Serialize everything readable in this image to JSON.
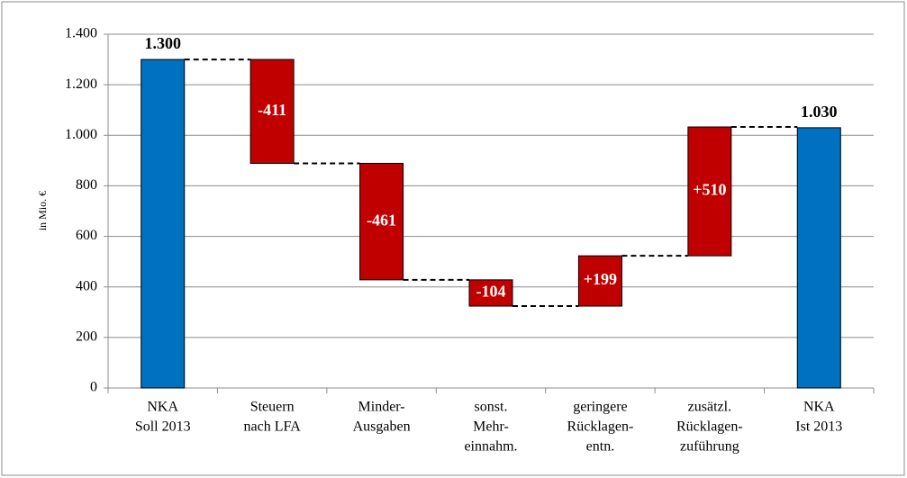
{
  "chart_data": {
    "type": "waterfall",
    "y_label": "in Mio. €",
    "categories": [
      [
        "NKA",
        "Soll 2013"
      ],
      [
        "Steuern",
        "nach LFA"
      ],
      [
        "Minder-",
        "Ausgaben"
      ],
      [
        "sonst.",
        "Mehr-",
        "einnahm."
      ],
      [
        "geringere",
        "Rücklagen-",
        "entn."
      ],
      [
        "zusätzl.",
        "Rücklagen-",
        "zuführung"
      ],
      [
        "NKA",
        "Ist 2013"
      ]
    ],
    "measure": [
      "total",
      "relative",
      "relative",
      "relative",
      "relative",
      "relative",
      "total"
    ],
    "values": [
      1300,
      -411,
      -461,
      -104,
      199,
      510,
      1030
    ],
    "value_labels": [
      "1.300",
      "-411",
      "-461",
      "-104",
      "+199",
      "+510",
      "1.030"
    ],
    "colors": [
      "#0070c0",
      "#c00000",
      "#c00000",
      "#c00000",
      "#c00000",
      "#c00000",
      "#0070c0"
    ],
    "ylim": [
      0,
      1400
    ],
    "yticks": [
      0,
      200,
      400,
      600,
      800,
      {
        "value": 1000,
        "label": "1.000"
      },
      {
        "value": 1200,
        "label": "1.200"
      },
      {
        "value": 1400,
        "label": "1.400"
      }
    ],
    "grid": true
  }
}
